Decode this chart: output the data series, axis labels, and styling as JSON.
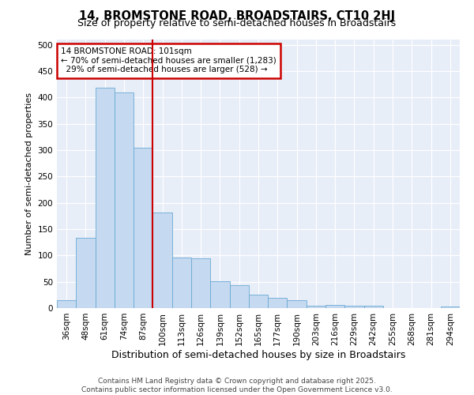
{
  "title": "14, BROMSTONE ROAD, BROADSTAIRS, CT10 2HJ",
  "subtitle": "Size of property relative to semi-detached houses in Broadstairs",
  "xlabel": "Distribution of semi-detached houses by size in Broadstairs",
  "ylabel": "Number of semi-detached properties",
  "categories": [
    "36sqm",
    "48sqm",
    "61sqm",
    "74sqm",
    "87sqm",
    "100sqm",
    "113sqm",
    "126sqm",
    "139sqm",
    "152sqm",
    "165sqm",
    "177sqm",
    "190sqm",
    "203sqm",
    "216sqm",
    "229sqm",
    "242sqm",
    "255sqm",
    "268sqm",
    "281sqm",
    "294sqm"
  ],
  "values": [
    15,
    133,
    418,
    410,
    305,
    181,
    96,
    95,
    51,
    44,
    26,
    20,
    15,
    5,
    6,
    5,
    4,
    0,
    0,
    0,
    3
  ],
  "bar_color": "#c5d9f0",
  "bar_edge_color": "#6aaad4",
  "vline_color": "#cc0000",
  "annotation_box_color": "#cc0000",
  "annotation_title": "14 BROMSTONE ROAD: 101sqm",
  "annotation_line1": "← 70% of semi-detached houses are smaller (1,283)",
  "annotation_line2": "  29% of semi-detached houses are larger (528) →",
  "ylim": [
    0,
    510
  ],
  "yticks": [
    0,
    50,
    100,
    150,
    200,
    250,
    300,
    350,
    400,
    450,
    500
  ],
  "background_color": "#e8eef8",
  "grid_color": "#ffffff",
  "footer": "Contains HM Land Registry data © Crown copyright and database right 2025.\nContains public sector information licensed under the Open Government Licence v3.0.",
  "title_fontsize": 10.5,
  "subtitle_fontsize": 9,
  "xlabel_fontsize": 9,
  "ylabel_fontsize": 8,
  "tick_fontsize": 7.5,
  "footer_fontsize": 6.5
}
